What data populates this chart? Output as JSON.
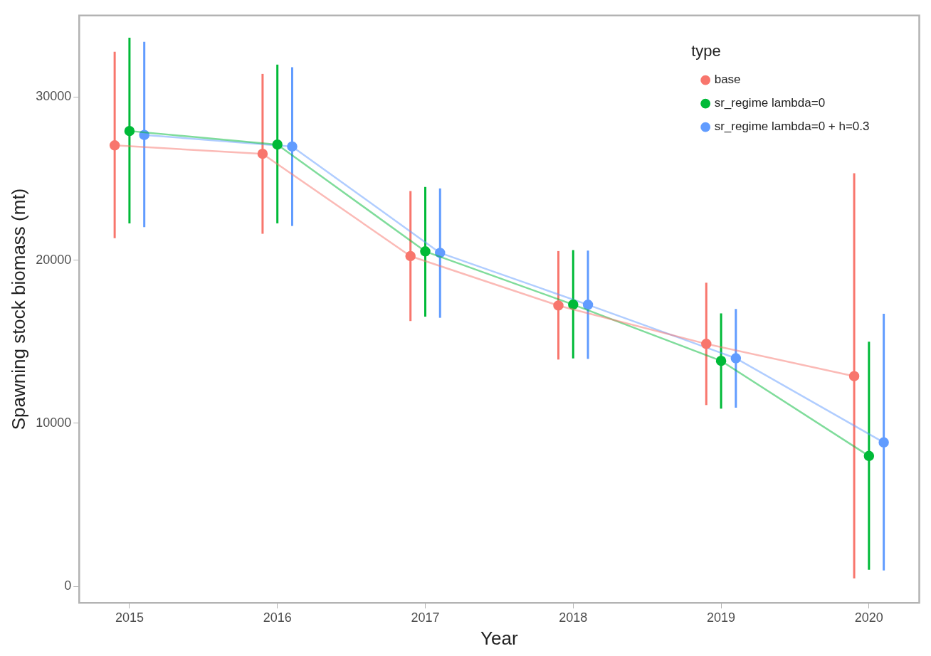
{
  "chart_data": {
    "type": "line",
    "xlabel": "Year",
    "ylabel": "Spawning stock biomass (mt)",
    "legend_title": "type",
    "legend": "top right",
    "grid": false,
    "marker": "circle",
    "line_style": "solid",
    "xlim": [
      2014.66,
      2020.34
    ],
    "xticks": [
      2015,
      2016,
      2017,
      2018,
      2019,
      2020
    ],
    "ylim": [
      -1000,
      35000
    ],
    "yticks": [
      0,
      10000,
      20000,
      30000
    ],
    "series": [
      {
        "name": "base",
        "color": "#f8766d",
        "x": [
          2014.9,
          2015.9,
          2016.9,
          2017.9,
          2018.9,
          2019.9
        ],
        "values": [
          27040,
          26520,
          20250,
          17220,
          14870,
          12890
        ],
        "errors": [
          [
            21350,
            32780
          ],
          [
            21620,
            31420
          ],
          [
            16270,
            24240
          ],
          [
            13910,
            20560
          ],
          [
            11120,
            18620
          ],
          [
            490,
            25330
          ]
        ]
      },
      {
        "name": "sr_regime lambda=0",
        "color": "#00ba38",
        "x": [
          2015,
          2016,
          2017,
          2018,
          2019,
          2020
        ],
        "values": [
          27920,
          27090,
          20540,
          17280,
          13830,
          8000
        ],
        "errors": [
          [
            22260,
            33640
          ],
          [
            22260,
            31990
          ],
          [
            16540,
            24490
          ],
          [
            13980,
            20620
          ],
          [
            10900,
            16740
          ],
          [
            1030,
            15000
          ]
        ]
      },
      {
        "name": "sr_regime lambda=0 + h=0.3",
        "color": "#619cff",
        "x": [
          2015.1,
          2016.1,
          2017.1,
          2018.1,
          2019.1,
          2020.1
        ],
        "values": [
          27680,
          26970,
          20450,
          17270,
          13990,
          8830
        ],
        "errors": [
          [
            22030,
            33390
          ],
          [
            22100,
            31830
          ],
          [
            16470,
            24400
          ],
          [
            13950,
            20590
          ],
          [
            10960,
            17010
          ],
          [
            980,
            16720
          ]
        ]
      }
    ]
  }
}
